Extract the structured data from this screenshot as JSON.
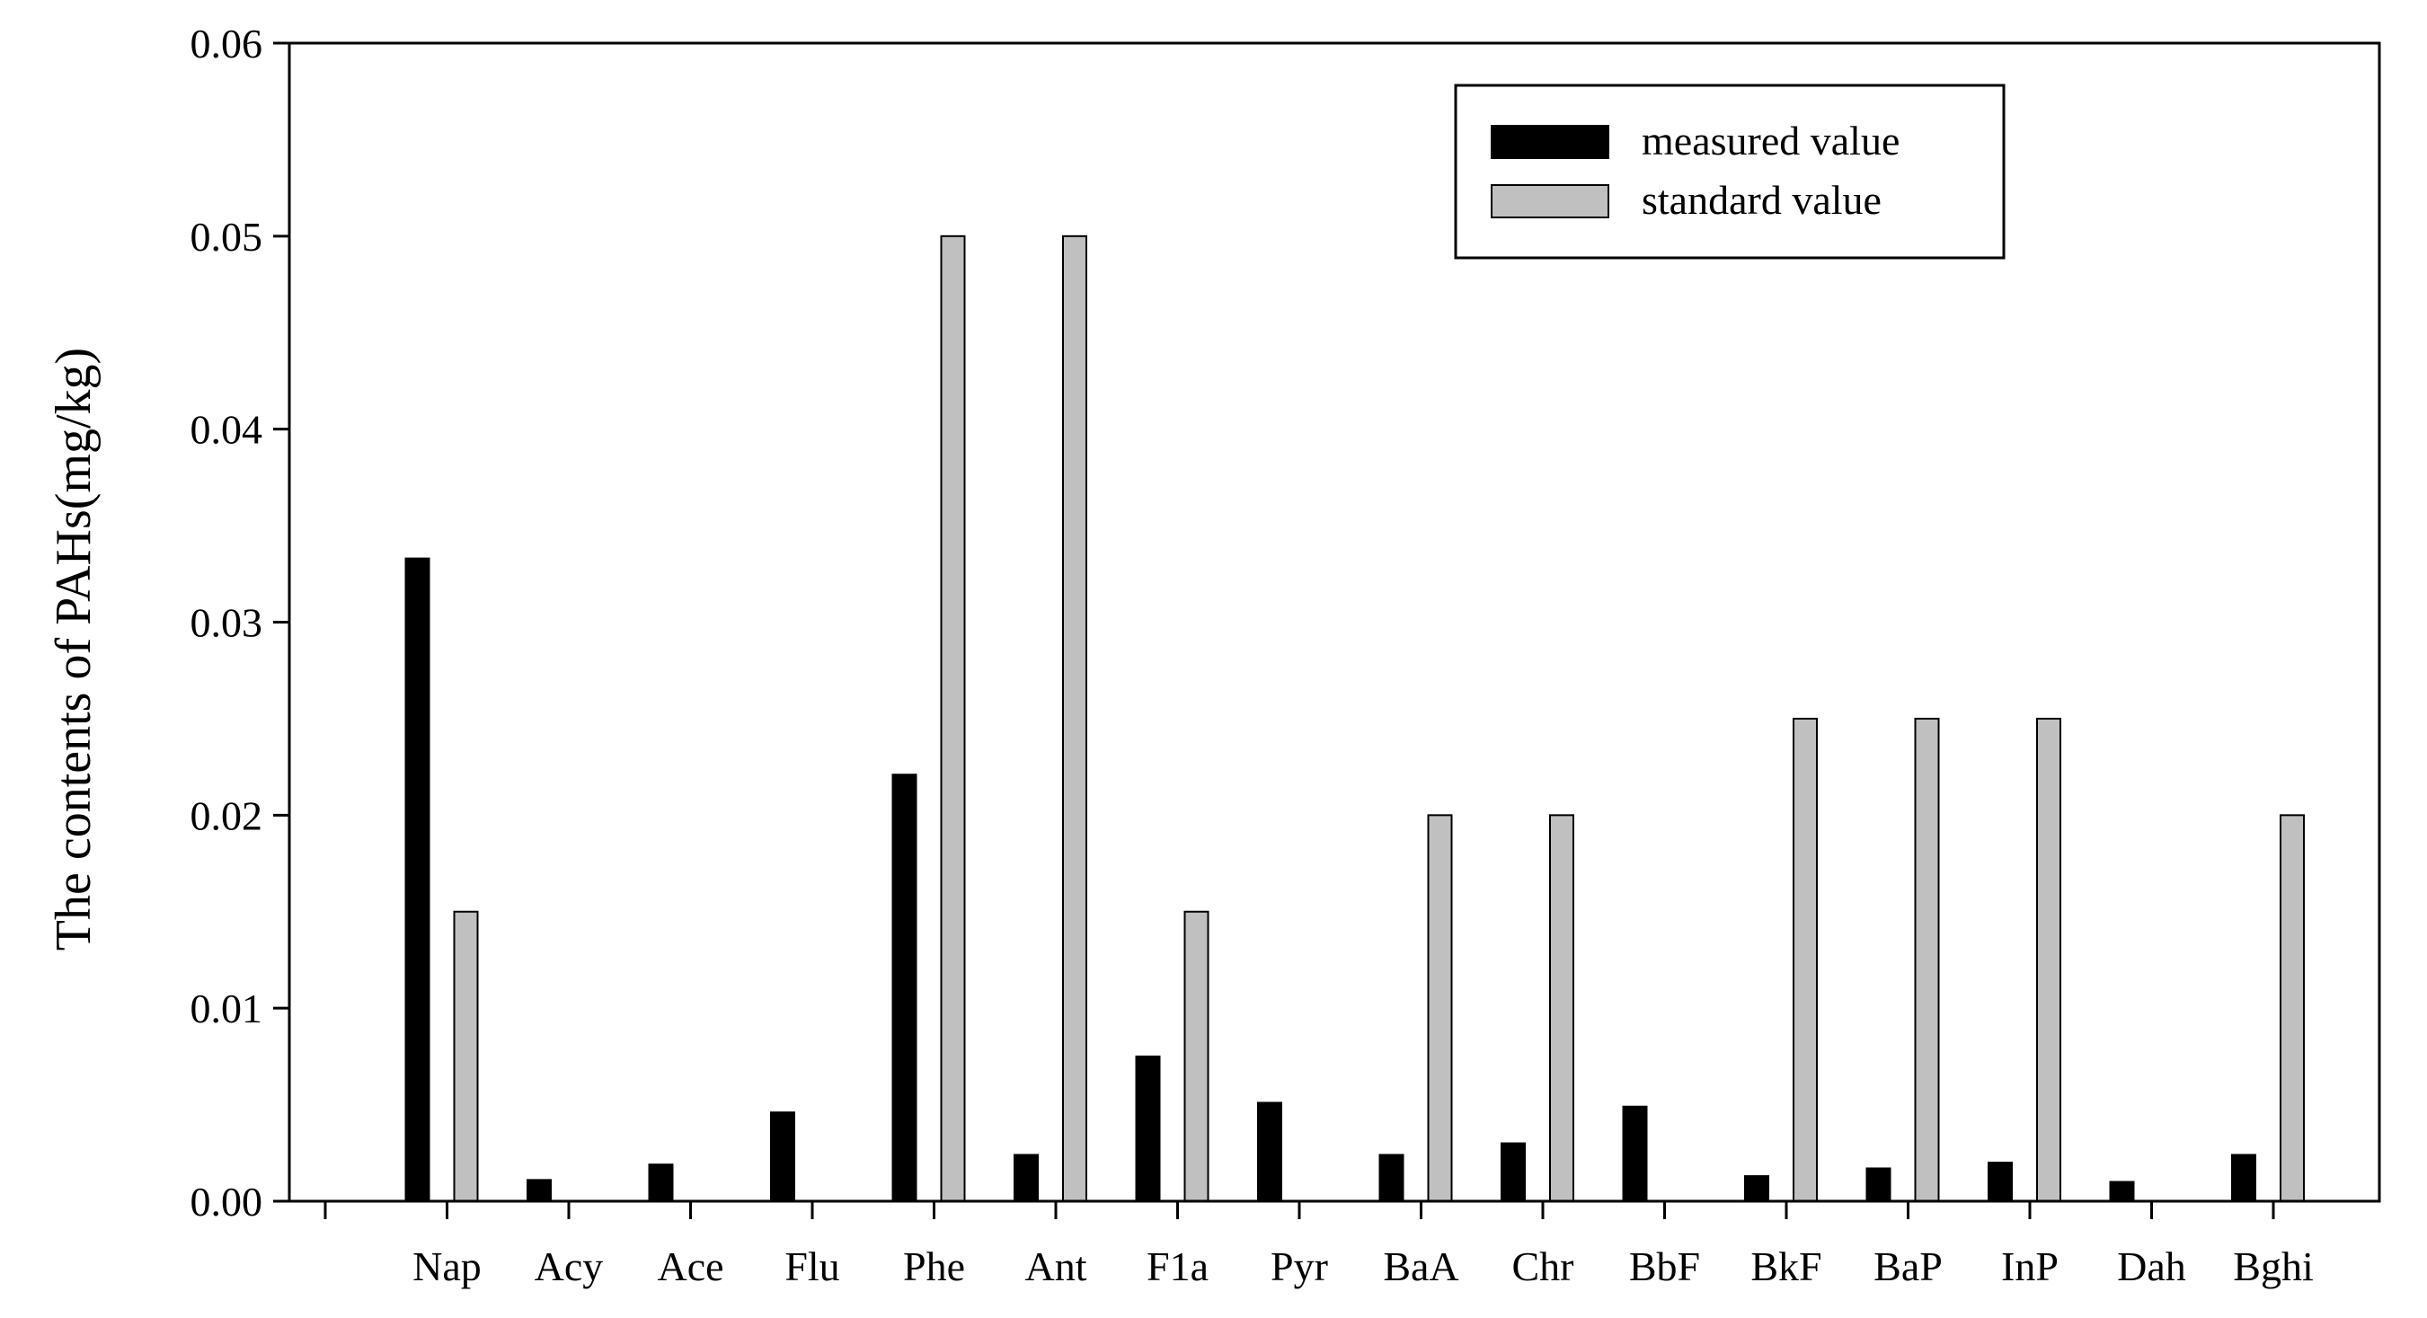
{
  "chart_data": {
    "type": "bar",
    "title": "",
    "xlabel": "",
    "ylabel": "The contents of PAHs(mg/kg)",
    "ylim": [
      0,
      0.06
    ],
    "yticks": [
      "0.00",
      "0.01",
      "0.02",
      "0.03",
      "0.04",
      "0.05",
      "0.06"
    ],
    "categories": [
      "Nap",
      "Acy",
      "Ace",
      "Flu",
      "Phe",
      "Ant",
      "F1a",
      "Pyr",
      "BaA",
      "Chr",
      "BbF",
      "BkF",
      "BaP",
      "InP",
      "Dah",
      "Bghi"
    ],
    "series": [
      {
        "name": "measured value",
        "color": "#000000",
        "values": [
          0.0333,
          0.0011,
          0.0019,
          0.0046,
          0.0221,
          0.0024,
          0.0075,
          0.0051,
          0.0024,
          0.003,
          0.0049,
          0.0013,
          0.0017,
          0.002,
          0.001,
          0.0024
        ]
      },
      {
        "name": "standard value",
        "color": "#c0c0c0",
        "values": [
          0.015,
          null,
          null,
          null,
          0.05,
          0.05,
          0.015,
          null,
          0.02,
          0.02,
          null,
          0.025,
          0.025,
          0.025,
          null,
          0.02
        ]
      }
    ],
    "grid": false,
    "legend_position": "top-right"
  }
}
